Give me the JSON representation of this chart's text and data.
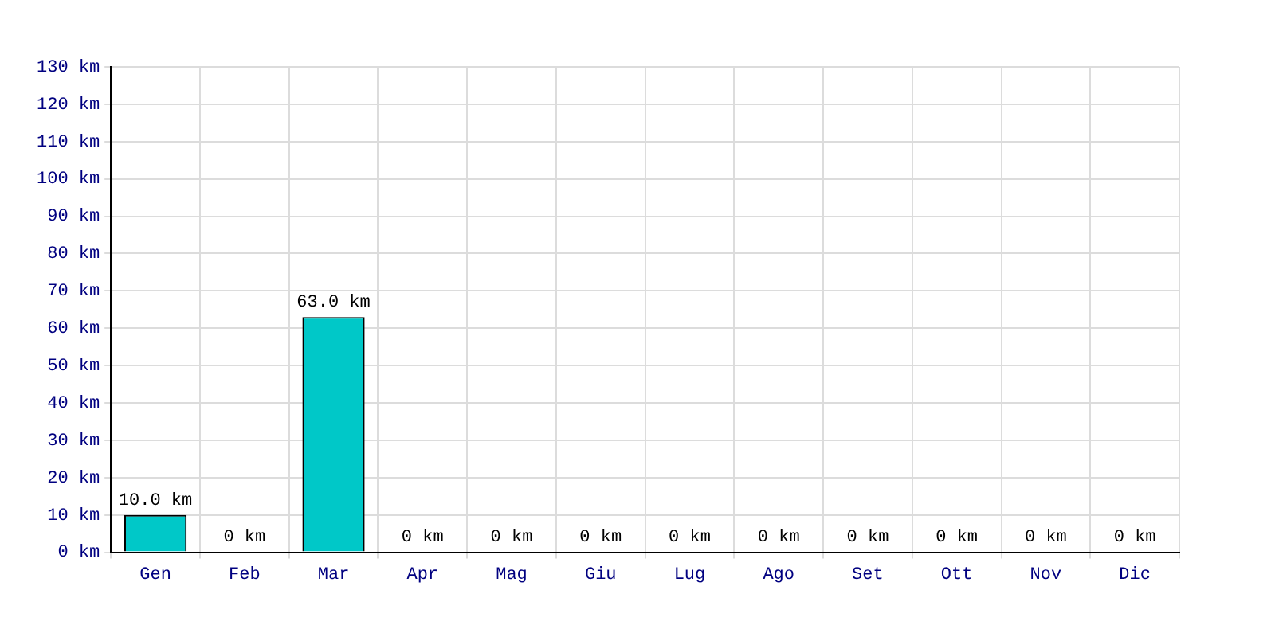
{
  "chart_data": {
    "type": "bar",
    "categories": [
      "Gen",
      "Feb",
      "Mar",
      "Apr",
      "Mag",
      "Giu",
      "Lug",
      "Ago",
      "Set",
      "Ott",
      "Nov",
      "Dic"
    ],
    "values": [
      10.0,
      0,
      63.0,
      0,
      0,
      0,
      0,
      0,
      0,
      0,
      0,
      0
    ],
    "value_labels": [
      "10.0 km",
      "0 km",
      "63.0 km",
      "0 km",
      "0 km",
      "0 km",
      "0 km",
      "0 km",
      "0 km",
      "0 km",
      "0 km",
      "0 km"
    ],
    "color": "#00c8c8",
    "ylim": [
      0,
      130
    ],
    "yticks": [
      {
        "value": 0,
        "label": "0 km"
      },
      {
        "value": 10,
        "label": "10 km"
      },
      {
        "value": 20,
        "label": "20 km"
      },
      {
        "value": 30,
        "label": "30 km"
      },
      {
        "value": 40,
        "label": "40 km"
      },
      {
        "value": 50,
        "label": "50 km"
      },
      {
        "value": 60,
        "label": "60 km"
      },
      {
        "value": 70,
        "label": "70 km"
      },
      {
        "value": 80,
        "label": "80 km"
      },
      {
        "value": 90,
        "label": "90 km"
      },
      {
        "value": 100,
        "label": "100 km"
      },
      {
        "value": 110,
        "label": "110 km"
      },
      {
        "value": 120,
        "label": "120 km"
      },
      {
        "value": 130,
        "label": "130 km"
      }
    ],
    "grid": true
  }
}
